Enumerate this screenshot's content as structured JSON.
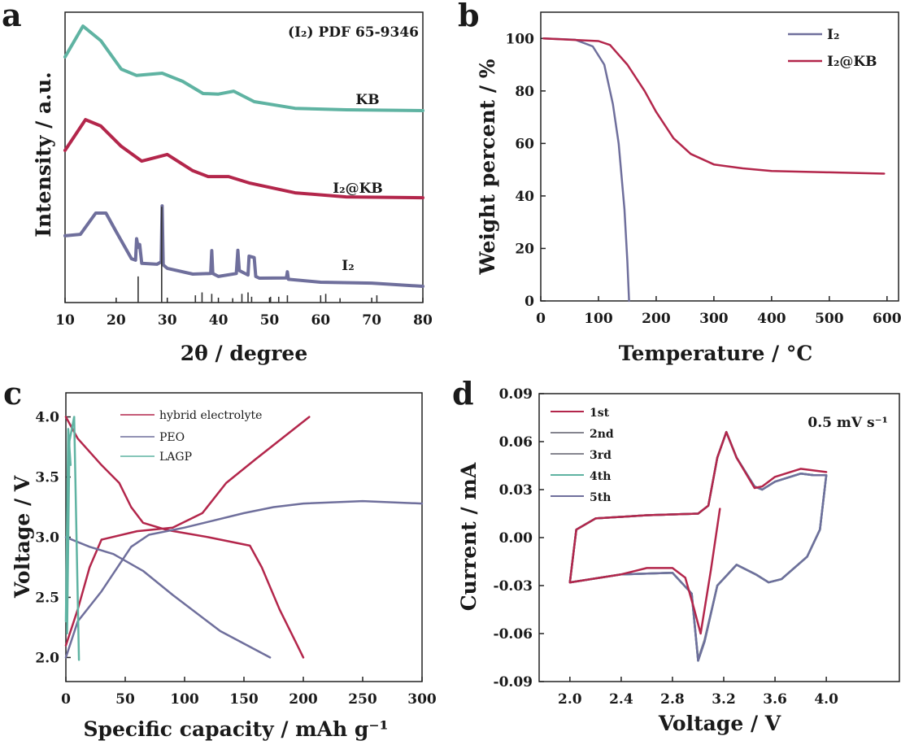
{
  "colors": {
    "red": "#b3264b",
    "purple": "#6f6f9c",
    "teal": "#5fb3a2",
    "gray": "#85858f",
    "axis": "#222222"
  },
  "chart_data": [
    {
      "panel": "a",
      "type": "line",
      "xlabel": "2θ / degree",
      "ylabel": "Intensity / a.u.",
      "xlim": [
        10,
        80
      ],
      "ylim": [
        0,
        100
      ],
      "xticks": [
        10,
        20,
        30,
        40,
        50,
        60,
        70,
        80
      ],
      "yticks": [],
      "annotation": "(I₂) PDF 65-9346",
      "series": [
        {
          "name": "KB",
          "color": "teal",
          "x": [
            10,
            13.5,
            17,
            21,
            24,
            29,
            33,
            37,
            40,
            43,
            47,
            55,
            65,
            80
          ],
          "y": [
            84.6,
            95.2,
            90.2,
            80.4,
            78.2,
            79.0,
            76.2,
            72.0,
            71.8,
            72.8,
            69.2,
            66.9,
            66.4,
            66.1
          ]
        },
        {
          "name": "I₂@KB",
          "color": "red",
          "x": [
            10,
            14,
            17,
            21,
            25,
            30,
            35,
            38,
            42,
            46,
            55,
            65,
            80
          ],
          "y": [
            52.4,
            63.0,
            60.8,
            53.8,
            48.7,
            51.0,
            45.4,
            43.4,
            43.4,
            41.2,
            37.8,
            36.4,
            36.1
          ]
        },
        {
          "name": "I₂",
          "color": "purple",
          "x": [
            10,
            13,
            16,
            18,
            20,
            23,
            23.8,
            24,
            24.3,
            24.6,
            25,
            28,
            28.8,
            29,
            29.2,
            30,
            35,
            38.5,
            38.7,
            38.9,
            40,
            43.5,
            43.8,
            44.1,
            45.8,
            46,
            47,
            47.3,
            48,
            53.3,
            53.5,
            53.7,
            60,
            70,
            80
          ],
          "y": [
            23.0,
            23.5,
            30.8,
            30.8,
            24.4,
            15.1,
            14.6,
            22,
            19,
            20,
            13.5,
            13.2,
            14,
            33.3,
            13,
            11.8,
            9.8,
            10,
            17.9,
            10,
            9.0,
            10,
            18,
            11,
            9.5,
            16,
            15.5,
            9,
            8.4,
            8.5,
            10.6,
            8,
            7.0,
            6.7,
            5.6
          ]
        }
      ],
      "reference_pattern": {
        "x": [
          24.3,
          28.9,
          35.5,
          36.8,
          38.7,
          42.8,
          44.6,
          45.8,
          46.5,
          50.2,
          51.8,
          53.5,
          60.0,
          61.0,
          63.8,
          71.0
        ],
        "y": [
          9,
          33,
          2.5,
          3.5,
          3,
          1.5,
          3,
          3.5,
          2,
          2,
          2,
          2.5,
          2.5,
          3,
          1.5,
          2.5
        ]
      }
    },
    {
      "panel": "b",
      "type": "line",
      "xlabel": "Temperature / °C",
      "ylabel": "Weight percent / %",
      "xlim": [
        0,
        620
      ],
      "ylim": [
        0,
        110
      ],
      "xticks": [
        0,
        100,
        200,
        300,
        400,
        500,
        600
      ],
      "yticks": [
        0,
        20,
        40,
        60,
        80,
        100
      ],
      "legend": "top-right",
      "series": [
        {
          "name": "I₂",
          "color": "purple",
          "x": [
            5,
            60,
            90,
            110,
            125,
            135,
            145,
            150,
            153
          ],
          "y": [
            100,
            99.5,
            97,
            90,
            75,
            60,
            35,
            15,
            0
          ]
        },
        {
          "name": "I₂@KB",
          "color": "red",
          "x": [
            5,
            100,
            120,
            150,
            180,
            200,
            230,
            260,
            300,
            350,
            400,
            500,
            595
          ],
          "y": [
            100,
            99,
            97.5,
            90,
            80,
            72,
            62,
            56,
            52,
            50.5,
            49.5,
            49,
            48.5
          ]
        }
      ]
    },
    {
      "panel": "c",
      "type": "line",
      "xlabel": "Specific capacity / mAh g⁻¹",
      "ylabel": "Voltage / V",
      "xlim": [
        0,
        300
      ],
      "ylim": [
        1.8,
        4.2
      ],
      "xticks": [
        0,
        50,
        100,
        150,
        200,
        250,
        300
      ],
      "yticks": [
        2.0,
        2.5,
        3.0,
        3.5,
        4.0
      ],
      "legend": "top-left",
      "series": [
        {
          "name": "hybrid electrolyte",
          "color": "red",
          "segments": [
            {
              "x": [
                0,
                10,
                30,
                45,
                55,
                65,
                85,
                120,
                155,
                165,
                180,
                195,
                200
              ],
              "y": [
                4.0,
                3.82,
                3.6,
                3.45,
                3.25,
                3.12,
                3.06,
                3.0,
                2.93,
                2.75,
                2.4,
                2.1,
                2.0
              ]
            },
            {
              "x": [
                0,
                10,
                20,
                30,
                60,
                90,
                115,
                135,
                160,
                205
              ],
              "y": [
                2.1,
                2.4,
                2.75,
                2.98,
                3.05,
                3.08,
                3.2,
                3.45,
                3.65,
                4.0
              ]
            }
          ]
        },
        {
          "name": "PEO",
          "color": "purple",
          "segments": [
            {
              "x": [
                0,
                20,
                40,
                65,
                90,
                130,
                172
              ],
              "y": [
                3.0,
                2.92,
                2.86,
                2.72,
                2.52,
                2.22,
                2.0
              ]
            },
            {
              "x": [
                0,
                10,
                30,
                55,
                70,
                100,
                150,
                175,
                200,
                250,
                300
              ],
              "y": [
                2.0,
                2.3,
                2.55,
                2.92,
                3.02,
                3.08,
                3.2,
                3.25,
                3.28,
                3.3,
                3.28
              ]
            }
          ]
        },
        {
          "name": "LAGP",
          "color": "teal",
          "segments": [
            {
              "x": [
                1,
                3,
                7
              ],
              "y": [
                2.2,
                3.8,
                4.0
              ]
            },
            {
              "x": [
                7,
                9,
                11
              ],
              "y": [
                4.0,
                3.0,
                1.98
              ]
            },
            {
              "x": [
                0,
                2,
                4
              ],
              "y": [
                2.3,
                3.9,
                3.6
              ]
            }
          ]
        }
      ]
    },
    {
      "panel": "d",
      "type": "line",
      "xlabel": "Voltage / V",
      "ylabel": "Current / mA",
      "xlim": [
        1.76,
        4.57
      ],
      "ylim": [
        -0.09,
        0.09
      ],
      "xticks": [
        2.0,
        2.4,
        2.8,
        3.2,
        3.6,
        4.0
      ],
      "yticks": [
        -0.09,
        -0.06,
        -0.03,
        0.0,
        0.03,
        0.06,
        0.09
      ],
      "ytick_labels": [
        "-0.09",
        "-0.06",
        "-0.03",
        "0.00",
        "0.03",
        "0.06",
        "0.09"
      ],
      "xtick_labels": [
        "2.0",
        "2.4",
        "2.8",
        "3.2",
        "3.6",
        "4.0"
      ],
      "annotation": "0.5 mV s⁻¹",
      "legend": "top-left",
      "series": [
        {
          "name": "2nd",
          "color": "gray",
          "x": [
            2.0,
            2.4,
            2.8,
            2.95,
            3.0,
            3.05,
            3.15,
            3.3,
            3.45,
            3.55,
            3.65,
            3.85,
            3.95,
            4.0,
            3.9,
            3.8,
            3.6,
            3.5,
            3.44,
            3.3,
            3.22,
            3.15,
            3.08,
            3.0,
            2.6,
            2.2,
            2.05,
            2.0
          ],
          "y": [
            -0.028,
            -0.023,
            -0.022,
            -0.035,
            -0.076,
            -0.064,
            -0.03,
            -0.017,
            -0.023,
            -0.028,
            -0.026,
            -0.012,
            0.005,
            0.039,
            0.039,
            0.04,
            0.035,
            0.03,
            0.032,
            0.05,
            0.066,
            0.05,
            0.02,
            0.015,
            0.014,
            0.012,
            0.005,
            -0.028
          ]
        },
        {
          "name": "3rd",
          "color": "gray",
          "x": [
            2.0,
            2.4,
            2.8,
            2.95,
            3.0,
            3.05,
            3.15,
            3.3,
            3.45,
            3.55,
            3.65,
            3.85,
            3.95,
            4.0,
            3.9,
            3.8,
            3.6,
            3.5,
            3.44,
            3.3,
            3.22,
            3.15,
            3.08,
            3.0,
            2.6,
            2.2,
            2.05,
            2.0
          ],
          "y": [
            -0.028,
            -0.023,
            -0.022,
            -0.035,
            -0.077,
            -0.065,
            -0.03,
            -0.017,
            -0.023,
            -0.028,
            -0.026,
            -0.012,
            0.005,
            0.039,
            0.039,
            0.04,
            0.035,
            0.03,
            0.032,
            0.05,
            0.066,
            0.05,
            0.02,
            0.015,
            0.014,
            0.012,
            0.005,
            -0.028
          ]
        },
        {
          "name": "4th",
          "color": "teal",
          "x": [
            2.0,
            2.4,
            2.8,
            2.95,
            3.0,
            3.05,
            3.15,
            3.3,
            3.45,
            3.55,
            3.65,
            3.85,
            3.95,
            4.0,
            3.9,
            3.8,
            3.6,
            3.5,
            3.44,
            3.3,
            3.22,
            3.15,
            3.08,
            3.0,
            2.6,
            2.2,
            2.05,
            2.0
          ],
          "y": [
            -0.028,
            -0.023,
            -0.022,
            -0.035,
            -0.077,
            -0.065,
            -0.03,
            -0.017,
            -0.023,
            -0.028,
            -0.026,
            -0.012,
            0.005,
            0.039,
            0.039,
            0.04,
            0.035,
            0.03,
            0.032,
            0.05,
            0.066,
            0.05,
            0.02,
            0.015,
            0.014,
            0.012,
            0.005,
            -0.028
          ]
        },
        {
          "name": "5th",
          "color": "purple",
          "x": [
            2.0,
            2.4,
            2.8,
            2.95,
            3.0,
            3.05,
            3.15,
            3.3,
            3.45,
            3.55,
            3.65,
            3.85,
            3.95,
            4.0,
            3.9,
            3.8,
            3.6,
            3.5,
            3.44,
            3.3,
            3.22,
            3.15,
            3.08,
            3.0,
            2.6,
            2.2,
            2.05,
            2.0
          ],
          "y": [
            -0.028,
            -0.023,
            -0.022,
            -0.035,
            -0.077,
            -0.065,
            -0.03,
            -0.017,
            -0.023,
            -0.028,
            -0.026,
            -0.012,
            0.005,
            0.039,
            0.039,
            0.04,
            0.035,
            0.03,
            0.032,
            0.05,
            0.066,
            0.05,
            0.02,
            0.015,
            0.014,
            0.012,
            0.005,
            -0.028
          ]
        },
        {
          "name": "1st",
          "color": "red",
          "x": [
            3.17,
            3.1,
            3.02,
            2.97,
            2.9,
            2.8,
            2.6,
            2.5,
            2.4,
            2.0,
            2.05,
            2.2,
            2.6,
            3.0,
            3.08,
            3.15,
            3.22,
            3.3,
            3.44,
            3.5,
            3.6,
            3.8,
            3.9,
            4.0
          ],
          "y": [
            0.018,
            -0.02,
            -0.06,
            -0.045,
            -0.025,
            -0.019,
            -0.019,
            -0.021,
            -0.023,
            -0.028,
            0.005,
            0.012,
            0.014,
            0.015,
            0.02,
            0.05,
            0.066,
            0.05,
            0.031,
            0.032,
            0.038,
            0.043,
            0.042,
            0.041
          ]
        }
      ],
      "legend_order": [
        "1st",
        "2nd",
        "3rd",
        "4th",
        "5th"
      ]
    }
  ],
  "panel_letters": [
    "a",
    "b",
    "c",
    "d"
  ],
  "curve_labels_a": {
    "kb": "KB",
    "i2kb": "I₂@KB",
    "i2": "I₂"
  }
}
